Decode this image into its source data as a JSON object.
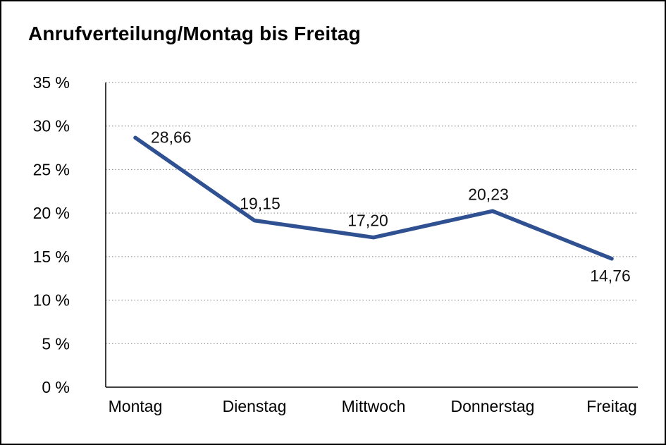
{
  "chart_data": {
    "type": "line",
    "title": "Anrufverteilung/Montag bis Freitag",
    "categories": [
      "Montag",
      "Dienstag",
      "Mittwoch",
      "Donnerstag",
      "Freitag"
    ],
    "values": [
      28.66,
      19.15,
      17.2,
      20.23,
      14.76
    ],
    "value_labels": [
      "28,66",
      "19,15",
      "17,20",
      "20,23",
      "14,76"
    ],
    "ylim": [
      0,
      35
    ],
    "ytick_step": 5,
    "ytick_labels": [
      "0 %",
      "5 %",
      "10 %",
      "15 %",
      "20 %",
      "25 %",
      "30 %",
      "35 %"
    ],
    "unit": "%",
    "line_color": "#2f5191",
    "axis_color": "#000000",
    "grid_color": "#7f7f7f",
    "grid_style": "dotted",
    "background": "#ffffff",
    "legend": "none"
  }
}
